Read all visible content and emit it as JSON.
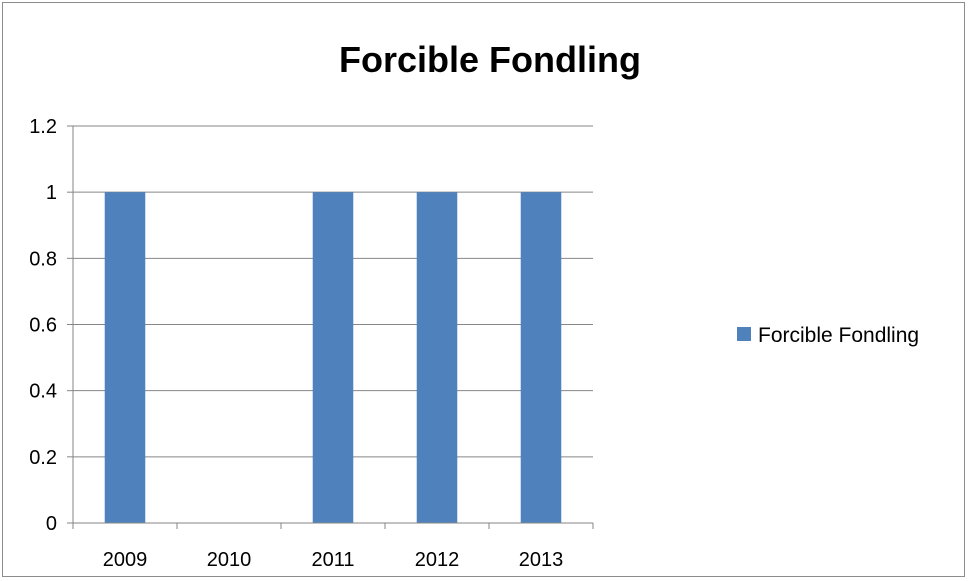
{
  "chart_data": {
    "type": "bar",
    "title": "Forcible Fondling",
    "categories": [
      "2009",
      "2010",
      "2011",
      "2012",
      "2013"
    ],
    "series": [
      {
        "name": "Forcible Fondling",
        "values": [
          1,
          0,
          1,
          1,
          1
        ],
        "color": "#4f81bd"
      }
    ],
    "xlabel": "",
    "ylabel": "",
    "ylim": [
      0,
      1.2
    ],
    "yticks": [
      "0",
      "0.2",
      "0.4",
      "0.6",
      "0.8",
      "1",
      "1.2"
    ],
    "grid": true,
    "legend_position": "right"
  }
}
